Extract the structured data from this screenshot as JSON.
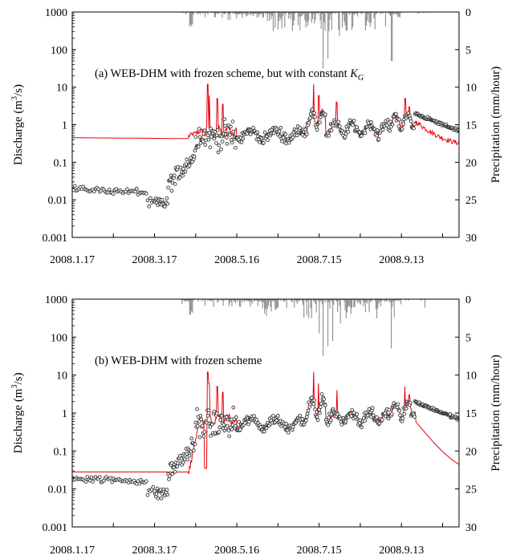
{
  "chart_data": [
    {
      "type": "line",
      "annotation": "(a) WEB-DHM with frozen scheme, but with constant ",
      "annotation_symbol": "K",
      "annotation_subscript": "G",
      "ylabel_left_prefix": "Discharge (m",
      "ylabel_left_sup": "3",
      "ylabel_left_suffix": "/s)",
      "ylabel_right": "Precipitation (mm/hour)",
      "x_tick_labels": [
        "2008.1.17",
        "2008.3.17",
        "2008.5.16",
        "2008.7.15",
        "2008.9.13"
      ],
      "x_day_range": [
        0,
        282
      ],
      "x_tick_days": [
        0,
        60,
        120,
        180,
        240
      ],
      "y_left_log_range": [
        0.001,
        1000
      ],
      "y_left_tick_labels": [
        "0.001",
        "0.01",
        "0.1",
        "1",
        "10",
        "100",
        "1000"
      ],
      "y_right_range": [
        0,
        30
      ],
      "y_right_tick_labels": [
        "0",
        "5",
        "10",
        "15",
        "20",
        "25",
        "30"
      ],
      "simulated_color": "#e8000b",
      "observed_stroke": "#333333",
      "precip_color": "#8c8c8c",
      "sim_flat_value": 0.45,
      "sim_flat_end_day": 85,
      "sim_late_recession_end": 0.32,
      "obs_winter_value": 0.018,
      "obs_winter_end_day": 55,
      "obs_recession_end": 0.35
    },
    {
      "type": "line",
      "annotation": "(b) WEB-DHM with frozen scheme",
      "ylabel_left_prefix": "Discharge (m",
      "ylabel_left_sup": "3",
      "ylabel_left_suffix": "/s)",
      "ylabel_right": "Precipitation (mm/hour)",
      "x_tick_labels": [
        "2008.1.17",
        "2008.3.17",
        "2008.5.16",
        "2008.7.15",
        "2008.9.13"
      ],
      "x_day_range": [
        0,
        282
      ],
      "x_tick_days": [
        0,
        60,
        120,
        180,
        240
      ],
      "y_left_log_range": [
        0.001,
        1000
      ],
      "y_left_tick_labels": [
        "0.001",
        "0.01",
        "0.1",
        "1",
        "10",
        "100",
        "1000"
      ],
      "y_right_range": [
        0,
        30
      ],
      "y_right_tick_labels": [
        "0",
        "5",
        "10",
        "15",
        "20",
        "25",
        "30"
      ],
      "simulated_color": "#e8000b",
      "observed_stroke": "#333333",
      "precip_color": "#8c8c8c",
      "sim_flat_value": 0.028,
      "sim_flat_end_day": 85,
      "sim_late_recession_end": 0.024,
      "obs_winter_value": 0.018,
      "obs_winter_end_day": 55,
      "obs_recession_end": 0.35
    }
  ]
}
